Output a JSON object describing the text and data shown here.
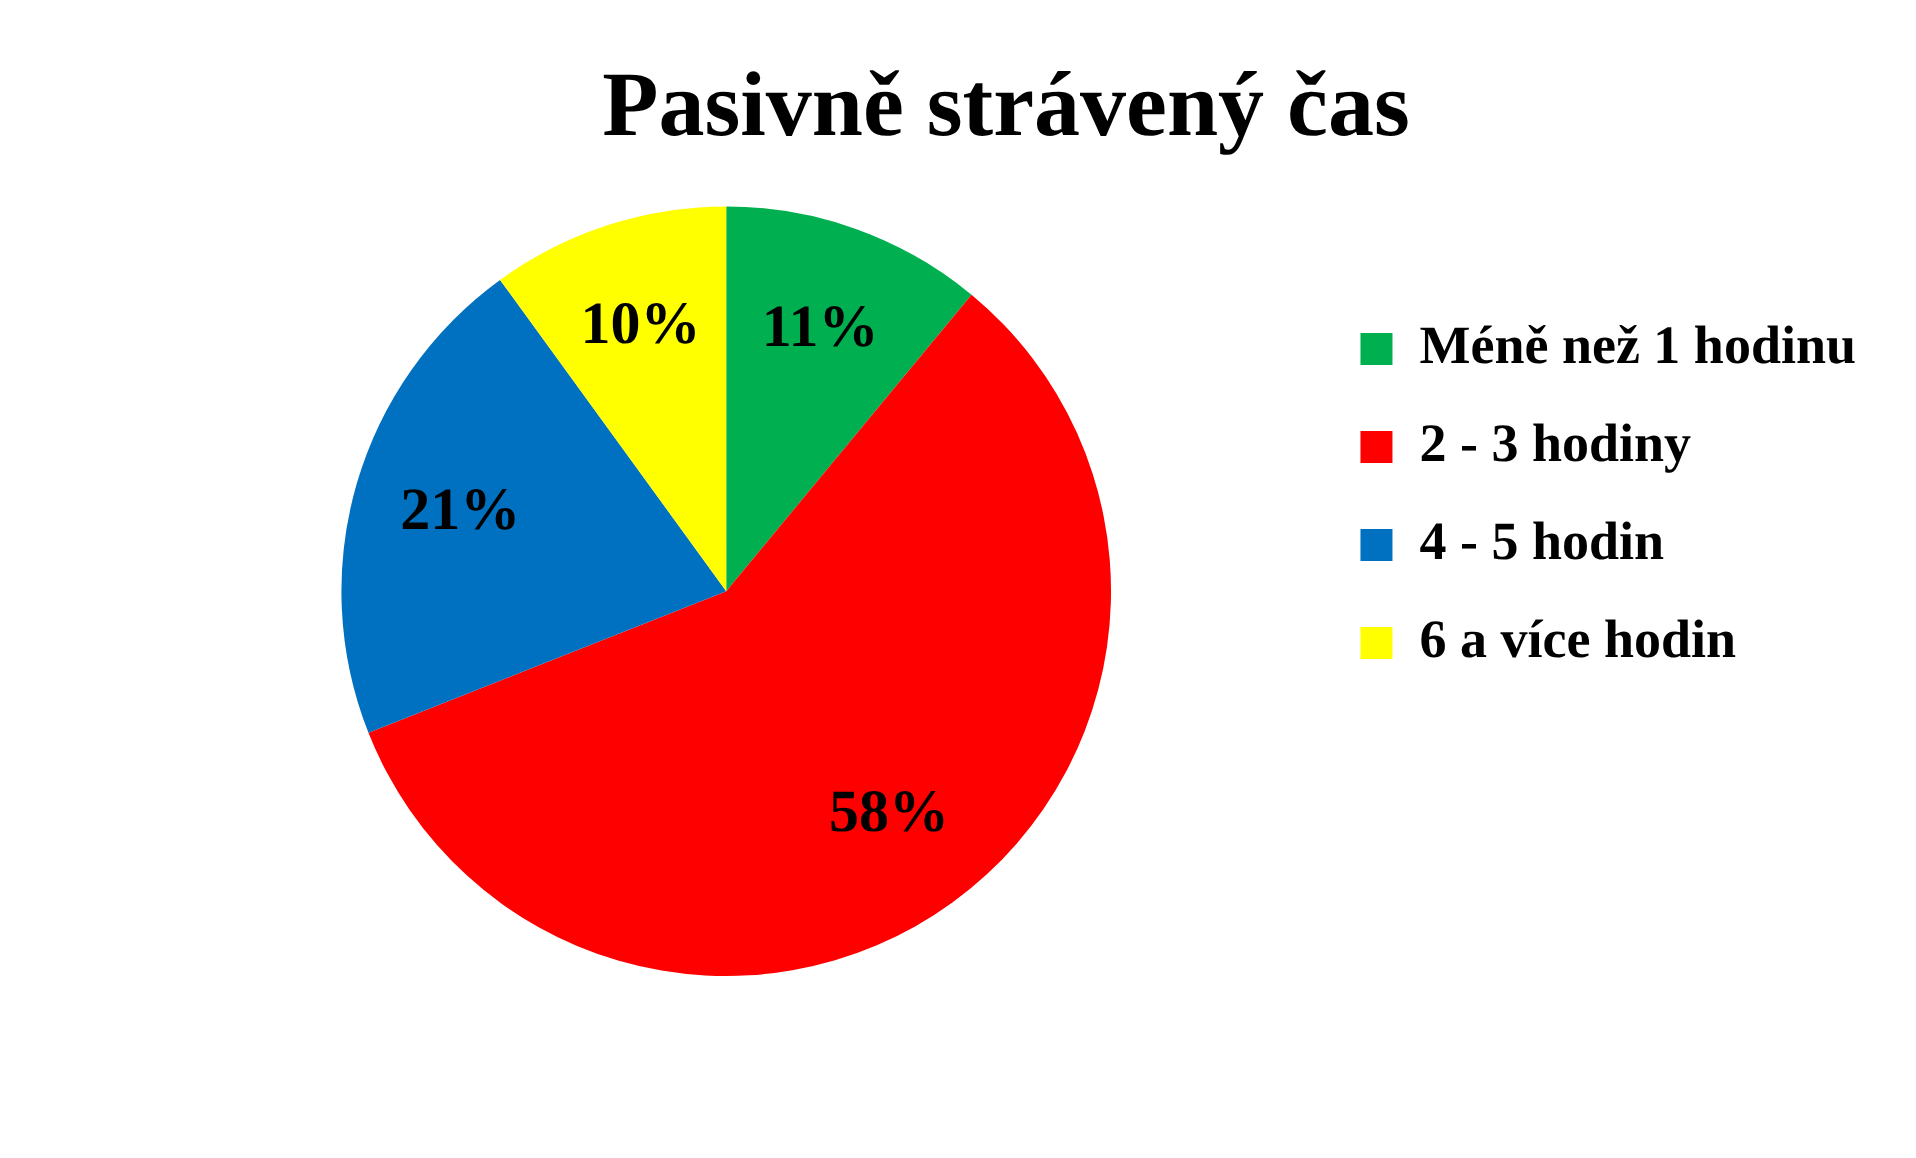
{
  "chart_data": {
    "type": "pie",
    "title": "Pasivně strávený čas",
    "categories": [
      "Méně než 1 hodinu",
      "2 - 3 hodiny",
      "4 - 5 hodin",
      "6 a více hodin"
    ],
    "values": [
      11,
      58,
      21,
      10
    ],
    "colors": [
      "#00b050",
      "#ff0000",
      "#0070c0",
      "#ffff00"
    ],
    "value_labels": [
      "11%",
      "58%",
      "21%",
      "10%"
    ],
    "legend": "right"
  }
}
